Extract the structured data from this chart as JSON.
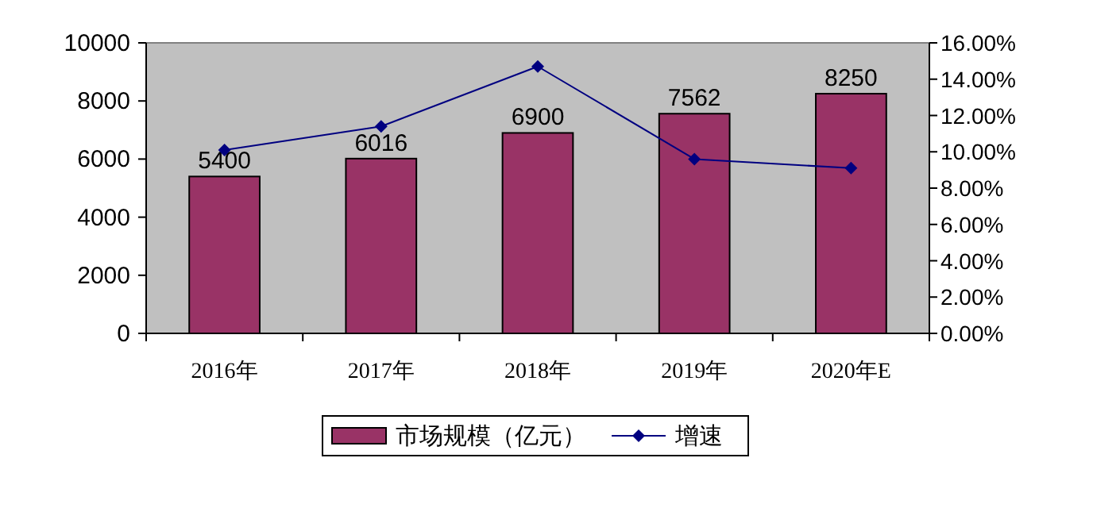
{
  "chart_data": {
    "type": "bar",
    "categories": [
      "2016年",
      "2017年",
      "2018年",
      "2019年",
      "2020年E"
    ],
    "series": [
      {
        "name": "市场规模（亿元）",
        "color": "#993366",
        "values": [
          5400,
          6016,
          6900,
          7562,
          8250
        ],
        "value_labels": [
          "5400",
          "6016",
          "6900",
          "7562",
          "8250"
        ]
      },
      {
        "name": "增速",
        "type": "line",
        "axis": "y2",
        "color": "#000080",
        "marker": "diamond",
        "values": [
          10.1,
          11.4,
          14.7,
          9.6,
          9.1
        ]
      }
    ],
    "ylim": [
      0,
      10000
    ],
    "yticks": [
      0,
      2000,
      4000,
      6000,
      8000,
      10000
    ],
    "y2lim": [
      0,
      16
    ],
    "y2ticks": [
      {
        "value": 0,
        "label": "0.00%"
      },
      {
        "value": 2,
        "label": "2.00%"
      },
      {
        "value": 4,
        "label": "4.00%"
      },
      {
        "value": 6,
        "label": "6.00%"
      },
      {
        "value": 8,
        "label": "8.00%"
      },
      {
        "value": 10,
        "label": "10.00%"
      },
      {
        "value": 12,
        "label": "12.00%"
      },
      {
        "value": 14,
        "label": "14.00%"
      },
      {
        "value": 16,
        "label": "16.00%"
      }
    ],
    "legend": "bottom",
    "grid": false
  }
}
